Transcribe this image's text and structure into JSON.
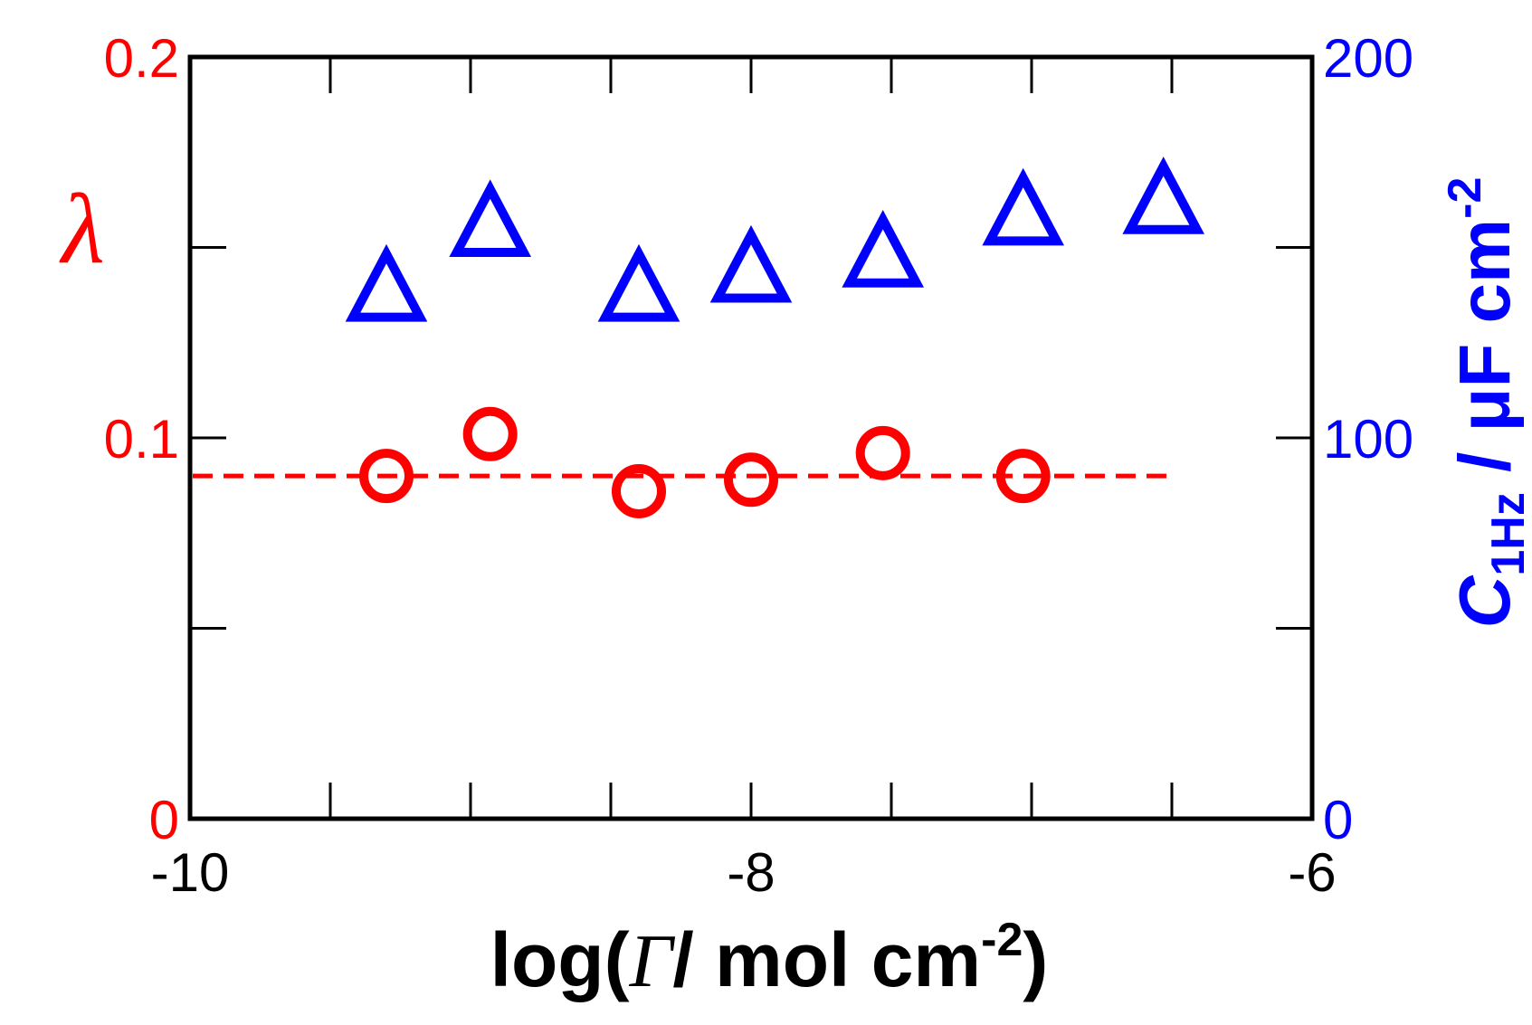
{
  "chart_data": {
    "type": "scatter",
    "x_axis": {
      "label_prefix": "log(",
      "label_symbol": "Γ",
      "label_unit": "/ mol cm",
      "label_exponent": "-2",
      "label_suffix": ")",
      "range": [
        -10,
        -6
      ],
      "tick_labels": [
        "-10",
        "-8",
        "-6"
      ],
      "tick_values": [
        -10,
        -8,
        -6
      ],
      "minor_tick_values": [
        -9.5,
        -9,
        -8.5,
        -7.5,
        -7,
        -6.5
      ]
    },
    "y_left_axis": {
      "label": "λ",
      "color": "#ff0000",
      "range": [
        0,
        0.2
      ],
      "tick_labels": [
        "0",
        "0.1",
        "0.2"
      ],
      "tick_values": [
        0,
        0.1,
        0.2
      ],
      "minor_tick_values": [
        0.05,
        0.15
      ]
    },
    "y_right_axis": {
      "label_main": "C",
      "label_sub": "1Hz",
      "label_unit": " / μF cm",
      "label_exponent": "-2",
      "color": "#0000ff",
      "range": [
        0,
        200
      ],
      "tick_labels": [
        "0",
        "100",
        "200"
      ],
      "tick_values": [
        0,
        100,
        200
      ],
      "minor_tick_values": [
        50,
        150
      ]
    },
    "series": [
      {
        "marker": "circle-open",
        "color": "#ff0000",
        "axis": "left",
        "x": [
          -9.3,
          -8.93,
          -8.4,
          -8.0,
          -7.53,
          -7.03
        ],
        "y": [
          0.09,
          0.101,
          0.086,
          0.089,
          0.096,
          0.09
        ]
      },
      {
        "marker": "triangle-open",
        "color": "#0000ff",
        "axis": "right",
        "x": [
          -9.3,
          -8.93,
          -8.4,
          -8.0,
          -7.53,
          -7.03,
          -6.53
        ],
        "y": [
          140,
          157,
          140,
          145,
          149,
          160,
          163
        ]
      }
    ],
    "reference_line": {
      "style": "dashed",
      "color": "#ff0000",
      "axis": "left",
      "x": [
        -10,
        -6.5
      ],
      "y": 0.09
    },
    "grid": false,
    "legend": "none"
  }
}
